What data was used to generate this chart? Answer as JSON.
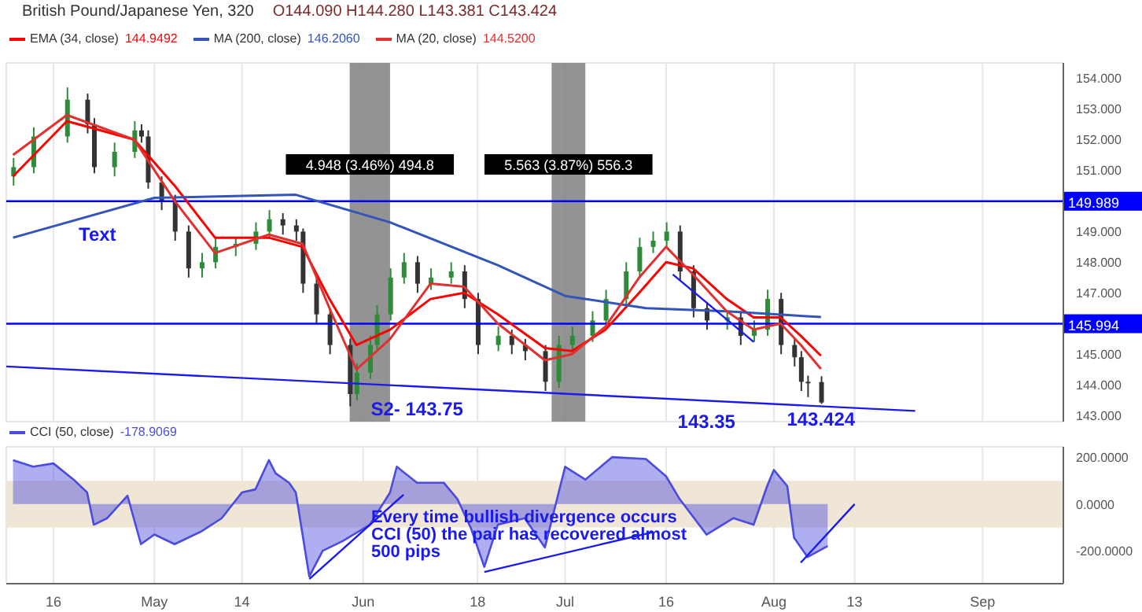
{
  "chart_data": [
    {
      "type": "candlestick",
      "title": "British Pound/Japanese Yen, 320",
      "subtitle": "O144.090 H144.280 L143.381 C143.424",
      "x": [
        "--04-10",
        "--04-13",
        "--04-18",
        "--04-21",
        "--04-22",
        "--04-25",
        "--04-28",
        "--04-29",
        "--04-30",
        "--05-02",
        "--05-04",
        "--05-06",
        "--05-08",
        "--05-10",
        "--05-13",
        "--05-16",
        "--05-18",
        "--05-20",
        "--05-22",
        "--05-23",
        "--05-25",
        "--05-27",
        "--05-30",
        "--05-31",
        "--06-02",
        "--06-03",
        "--06-05",
        "--06-07",
        "--06-09",
        "--06-11",
        "--06-14",
        "--06-16",
        "--06-18",
        "--06-21",
        "--06-23",
        "--06-25",
        "--06-28",
        "--06-30",
        "--07-02",
        "--07-05",
        "--07-07",
        "--07-10",
        "--07-12",
        "--07-14",
        "--07-16",
        "--07-18",
        "--07-20",
        "--07-22",
        "--07-25",
        "--07-27",
        "--07-29",
        "--07-31",
        "--08-02",
        "--08-04",
        "--08-05",
        "--08-06",
        "--08-08"
      ],
      "ohlc": [
        [
          150.8,
          151.4,
          150.5,
          151.1
        ],
        [
          151.1,
          152.4,
          150.9,
          152.1
        ],
        [
          152.1,
          153.7,
          151.9,
          153.3
        ],
        [
          153.3,
          153.5,
          152.2,
          152.5
        ],
        [
          152.5,
          152.7,
          150.9,
          151.1
        ],
        [
          151.1,
          151.9,
          150.8,
          151.6
        ],
        [
          151.6,
          152.6,
          151.4,
          152.3
        ],
        [
          152.3,
          152.5,
          151.9,
          152.1
        ],
        [
          152.1,
          152.3,
          150.4,
          150.6
        ],
        [
          150.6,
          150.8,
          149.7,
          150.0
        ],
        [
          150.0,
          150.2,
          148.7,
          149.0
        ],
        [
          149.0,
          149.2,
          147.5,
          147.8
        ],
        [
          147.8,
          148.3,
          147.5,
          148.0
        ],
        [
          148.0,
          148.8,
          147.8,
          148.5
        ],
        [
          148.5,
          148.8,
          148.2,
          148.6
        ],
        [
          148.6,
          149.3,
          148.4,
          149.0
        ],
        [
          149.0,
          149.7,
          148.8,
          149.4
        ],
        [
          149.4,
          149.6,
          148.9,
          149.2
        ],
        [
          149.2,
          149.4,
          148.7,
          149.0
        ],
        [
          149.0,
          149.1,
          147.0,
          147.3
        ],
        [
          147.3,
          147.5,
          146.0,
          146.3
        ],
        [
          146.3,
          146.5,
          145.0,
          145.3
        ],
        [
          145.3,
          145.5,
          143.3,
          143.7
        ],
        [
          143.7,
          144.7,
          143.5,
          144.4
        ],
        [
          144.4,
          145.6,
          144.2,
          145.3
        ],
        [
          145.3,
          146.6,
          145.1,
          146.3
        ],
        [
          146.3,
          147.8,
          146.1,
          147.5
        ],
        [
          147.5,
          148.3,
          147.3,
          148.0
        ],
        [
          148.0,
          148.2,
          147.0,
          147.3
        ],
        [
          147.3,
          147.8,
          147.1,
          147.5
        ],
        [
          147.5,
          148.0,
          147.3,
          147.7
        ],
        [
          147.7,
          147.9,
          146.5,
          146.8
        ],
        [
          146.8,
          147.0,
          145.0,
          145.3
        ],
        [
          145.3,
          145.9,
          145.1,
          145.6
        ],
        [
          145.6,
          145.8,
          145.0,
          145.3
        ],
        [
          145.3,
          145.5,
          144.8,
          145.1
        ],
        [
          145.1,
          145.3,
          143.8,
          144.1
        ],
        [
          144.1,
          145.6,
          143.9,
          145.3
        ],
        [
          145.3,
          145.9,
          145.1,
          145.6
        ],
        [
          145.6,
          146.4,
          145.4,
          146.1
        ],
        [
          146.1,
          147.1,
          145.9,
          146.8
        ],
        [
          146.8,
          148.0,
          146.6,
          147.7
        ],
        [
          147.7,
          148.8,
          147.5,
          148.5
        ],
        [
          148.5,
          149.0,
          148.3,
          148.7
        ],
        [
          148.7,
          149.3,
          148.5,
          149.0
        ],
        [
          149.0,
          149.2,
          147.4,
          147.7
        ],
        [
          147.7,
          147.9,
          146.2,
          146.5
        ],
        [
          146.5,
          146.7,
          145.8,
          146.1
        ],
        [
          146.1,
          146.4,
          145.8,
          146.2
        ],
        [
          146.2,
          146.4,
          145.3,
          145.6
        ],
        [
          145.6,
          146.1,
          145.4,
          145.8
        ],
        [
          145.8,
          147.1,
          145.6,
          146.8
        ],
        [
          146.8,
          147.0,
          145.0,
          145.3
        ],
        [
          145.3,
          145.5,
          144.6,
          144.9
        ],
        [
          144.9,
          145.1,
          143.8,
          144.1
        ],
        [
          144.1,
          144.3,
          143.6,
          144.09
        ],
        [
          144.09,
          144.28,
          143.381,
          143.424
        ]
      ],
      "series": [
        {
          "type": "line",
          "name": "EMA (34, close)",
          "color": "#ff0000",
          "x": [
            "--04-10",
            "--04-18",
            "--04-28",
            "--05-04",
            "--05-10",
            "--05-18",
            "--05-23",
            "--05-27",
            "--05-31",
            "--06-05",
            "--06-11",
            "--06-16",
            "--06-21",
            "--06-28",
            "--07-02",
            "--07-07",
            "--07-12",
            "--07-16",
            "--07-20",
            "--07-25",
            "--07-29",
            "--08-02",
            "--08-05",
            "--08-08"
          ],
          "values": [
            150.8,
            152.6,
            152.0,
            150.5,
            148.8,
            148.8,
            148.5,
            146.8,
            145.3,
            145.8,
            146.8,
            147.0,
            146.3,
            145.2,
            145.1,
            145.8,
            147.0,
            148.0,
            147.8,
            146.8,
            146.2,
            146.2,
            145.6,
            144.95
          ]
        },
        {
          "type": "line",
          "name": "MA (200, close)",
          "color": "#3355bb",
          "x": [
            "--04-10",
            "--05-01",
            "--05-22",
            "--06-05",
            "--06-21",
            "--07-01",
            "--07-13",
            "--07-25",
            "--08-08"
          ],
          "values": [
            148.8,
            150.1,
            150.2,
            149.3,
            147.9,
            146.9,
            146.5,
            146.4,
            146.21
          ]
        },
        {
          "type": "line",
          "name": "MA (20, close)",
          "color": "#e03030",
          "x": [
            "--04-10",
            "--04-18",
            "--04-28",
            "--05-04",
            "--05-10",
            "--05-18",
            "--05-23",
            "--05-27",
            "--05-31",
            "--06-05",
            "--06-11",
            "--06-16",
            "--06-21",
            "--06-28",
            "--07-02",
            "--07-07",
            "--07-12",
            "--07-16",
            "--07-20",
            "--07-25",
            "--07-29",
            "--08-02",
            "--08-05",
            "--08-08"
          ],
          "values": [
            151.5,
            152.8,
            152.0,
            150.0,
            148.3,
            148.9,
            148.6,
            146.5,
            144.5,
            145.5,
            147.3,
            147.2,
            146.0,
            144.8,
            145.0,
            145.9,
            147.5,
            148.5,
            147.6,
            146.4,
            145.8,
            146.0,
            145.3,
            144.52
          ]
        },
        {
          "type": "line",
          "color": "#1a1aee",
          "x": [
            "--04-09",
            "--08-22"
          ],
          "values": [
            144.6,
            143.15
          ]
        },
        {
          "type": "line",
          "color": "#1a1aee",
          "x": [
            "--07-17",
            "--07-29"
          ],
          "values": [
            147.6,
            145.4
          ]
        }
      ],
      "xlim": [
        "--04-09",
        "--09-13"
      ],
      "xticks": [
        {
          "value": "--04-16",
          "label": "16"
        },
        {
          "value": "--05-01",
          "label": "May"
        },
        {
          "value": "--05-14",
          "label": "14"
        },
        {
          "value": "--06-01",
          "label": "Jun"
        },
        {
          "value": "--06-18",
          "label": "18"
        },
        {
          "value": "--07-01",
          "label": "Jul"
        },
        {
          "value": "--07-16",
          "label": "16"
        },
        {
          "value": "--08-01",
          "label": "Aug"
        },
        {
          "value": "--08-13",
          "label": "13"
        },
        {
          "value": "--09-01",
          "label": "Sep"
        }
      ],
      "ylim": [
        142.8,
        154.5
      ],
      "yticks": [
        {
          "value": 143,
          "label": "143.000"
        },
        {
          "value": 144,
          "label": "144.000"
        },
        {
          "value": 145,
          "label": "145.000"
        },
        {
          "value": 147,
          "label": "147.000"
        },
        {
          "value": 148,
          "label": "148.000"
        },
        {
          "value": 149,
          "label": "149.000"
        },
        {
          "value": 151,
          "label": "151.000"
        },
        {
          "value": 152,
          "label": "152.000"
        },
        {
          "value": 153,
          "label": "153.000"
        },
        {
          "value": 154,
          "label": "154.000"
        }
      ],
      "ref_lines": [
        {
          "axis": "y",
          "value": 149.989,
          "label": "149.989",
          "color": "#0000ff"
        },
        {
          "axis": "y",
          "value": 145.994,
          "label": "145.994",
          "color": "#0000ff"
        }
      ],
      "bands": [
        {
          "axis": "x",
          "from": "--05-30",
          "to": "--06-05",
          "label": "4.948 (3.46%) 494.8",
          "color": "#808080"
        },
        {
          "axis": "x",
          "from": "--06-29",
          "to": "--07-04",
          "label": "5.563 (3.87%) 556.3",
          "color": "#808080"
        }
      ],
      "annotations": [
        "Text",
        "144.9492",
        "146.2060",
        "144.5200",
        {
          "text": "S2- 143.75",
          "x": "--06-09",
          "y": 143.75
        },
        {
          "text": "143.35",
          "x": "--07-22",
          "y": 143.35
        },
        {
          "text": "143.424",
          "x": "--08-08",
          "y": 143.424
        }
      ],
      "grid": true,
      "legend": "top left",
      "tick_labels": "y"
    },
    {
      "type": "area",
      "series": [
        {
          "type": "area",
          "name": "CCI (50, close)",
          "color": "#4b4bdd",
          "x": [
            "--04-10",
            "--04-13",
            "--04-16",
            "--04-19",
            "--04-21",
            "--04-22",
            "--04-24",
            "--04-27",
            "--04-29",
            "--05-01",
            "--05-04",
            "--05-08",
            "--05-11",
            "--05-14",
            "--05-16",
            "--05-18",
            "--05-19",
            "--05-21",
            "--05-22",
            "--05-24",
            "--05-26",
            "--05-29",
            "--06-02",
            "--06-05",
            "--06-06",
            "--06-09",
            "--06-13",
            "--06-15",
            "--06-17",
            "--06-19",
            "--06-21",
            "--06-25",
            "--06-28",
            "--07-01",
            "--07-04",
            "--07-08",
            "--07-13",
            "--07-16",
            "--07-18",
            "--07-22",
            "--07-26",
            "--07-29",
            "--07-31",
            "--08-01",
            "--08-03",
            "--08-04",
            "--08-06",
            "--08-09"
          ],
          "values": [
            188,
            160,
            174,
            105,
            50,
            -88,
            -60,
            36,
            -171,
            -130,
            -171,
            -116,
            -60,
            50,
            63,
            188,
            132,
            91,
            50,
            -309,
            -199,
            -157,
            -88,
            50,
            160,
            91,
            91,
            22,
            -102,
            -268,
            -88,
            -60,
            -185,
            160,
            105,
            201,
            193,
            119,
            22,
            -130,
            -60,
            -88,
            77,
            146,
            77,
            -143,
            -226,
            -179
          ]
        },
        {
          "type": "line",
          "color": "#1a1aee",
          "x": [
            "--05-24",
            "--06-07"
          ],
          "values": [
            -320,
            40
          ]
        },
        {
          "type": "line",
          "color": "#1a1aee",
          "x": [
            "--06-19",
            "--07-14"
          ],
          "values": [
            -290,
            -120
          ]
        },
        {
          "type": "line",
          "color": "#1a1aee",
          "x": [
            "--08-05",
            "--08-13"
          ],
          "values": [
            -250,
            0
          ]
        }
      ],
      "xlim": [
        "--04-09",
        "--09-13"
      ],
      "xticks": [
        {
          "value": "--04-16",
          "label": "16"
        },
        {
          "value": "--05-01",
          "label": "May"
        },
        {
          "value": "--05-14",
          "label": "14"
        },
        {
          "value": "--06-01",
          "label": "Jun"
        },
        {
          "value": "--06-18",
          "label": "18"
        },
        {
          "value": "--07-01",
          "label": "Jul"
        },
        {
          "value": "--07-16",
          "label": "16"
        },
        {
          "value": "--08-01",
          "label": "Aug"
        },
        {
          "value": "--08-13",
          "label": "13"
        },
        {
          "value": "--09-01",
          "label": "Sep"
        }
      ],
      "ylim": [
        -340,
        245
      ],
      "yticks": [
        {
          "value": -200,
          "label": "-200.0000"
        },
        {
          "value": 0,
          "label": "0.0000"
        },
        {
          "value": 200,
          "label": "200.0000"
        }
      ],
      "bands": [
        {
          "axis": "y",
          "from": -100,
          "to": 100,
          "color": "#efe6d6"
        }
      ],
      "annotations": [
        "-178.9069",
        "Every time bullish divergence occurs CCI (50) the pair has recovered almost 500 pips"
      ],
      "grid": true,
      "legend": "top left"
    }
  ]
}
